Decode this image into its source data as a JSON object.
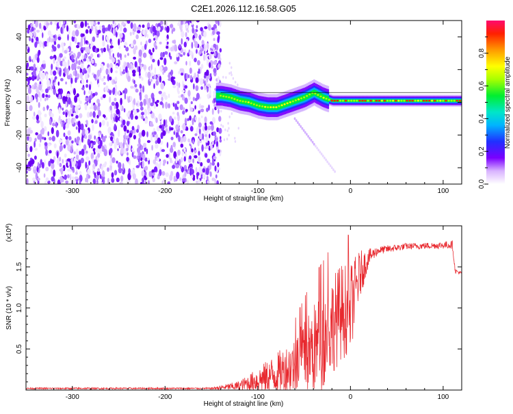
{
  "title": "C2E1.2026.112.16.58.G05",
  "chart_data": [
    {
      "type": "heatmap",
      "name": "spectrogram",
      "xlabel": "Height of straight line (km)",
      "ylabel": "Frequency (Hz)",
      "xlim": [
        -350,
        120
      ],
      "ylim": [
        -50,
        50
      ],
      "xticks": [
        -300,
        -200,
        -100,
        0,
        100
      ],
      "xtick_labels": [
        "-300",
        "-200",
        "-100",
        "0",
        "100"
      ],
      "yticks": [
        -40,
        -20,
        0,
        20,
        40
      ],
      "ytick_labels": [
        "-40",
        "-20",
        "0",
        "20",
        "40"
      ],
      "colorbar": {
        "label": "Normalized spectral amplitude",
        "range": [
          0,
          1
        ],
        "ticks": [
          0.0,
          0.2,
          0.4,
          0.6,
          0.8
        ],
        "tick_labels": [
          "0.0",
          "0.2",
          "0.4",
          "0.6",
          "0.8"
        ]
      },
      "noise_region_x": [
        -350,
        -140
      ],
      "ridge": [
        {
          "x": -140,
          "f": 4
        },
        {
          "x": -130,
          "f": 3
        },
        {
          "x": -120,
          "f": 1
        },
        {
          "x": -110,
          "f": 0
        },
        {
          "x": -100,
          "f": -2
        },
        {
          "x": -90,
          "f": -3
        },
        {
          "x": -80,
          "f": -3
        },
        {
          "x": -70,
          "f": -1
        },
        {
          "x": -60,
          "f": 1
        },
        {
          "x": -50,
          "f": 3
        },
        {
          "x": -40,
          "f": 6
        },
        {
          "x": -30,
          "f": 3
        },
        {
          "x": -20,
          "f": 1
        },
        {
          "x": 0,
          "f": 1
        },
        {
          "x": 50,
          "f": 1
        },
        {
          "x": 100,
          "f": 1
        },
        {
          "x": 120,
          "f": 1
        }
      ]
    },
    {
      "type": "line",
      "name": "snr",
      "xlabel": "Height of straight line (km)",
      "ylabel": "SNR (10 * v/v)",
      "scale_label": "(x10",
      "scale_exp": "4",
      "scale_close": ")",
      "color": "#e8282e",
      "xlim": [
        -350,
        120
      ],
      "ylim": [
        0,
        2.0
      ],
      "xticks": [
        -300,
        -200,
        -100,
        0,
        100
      ],
      "xtick_labels": [
        "-300",
        "-200",
        "-100",
        "0",
        "100"
      ],
      "yticks": [
        0.5,
        1.0,
        1.5
      ],
      "ytick_labels": [
        "0.5",
        "1.0",
        "1.5"
      ],
      "envelope": [
        {
          "x": -350,
          "base": 0.02,
          "amp": 0.01
        },
        {
          "x": -150,
          "base": 0.02,
          "amp": 0.01
        },
        {
          "x": -120,
          "base": 0.05,
          "amp": 0.06
        },
        {
          "x": -100,
          "base": 0.12,
          "amp": 0.15
        },
        {
          "x": -80,
          "base": 0.2,
          "amp": 0.25
        },
        {
          "x": -60,
          "base": 0.3,
          "amp": 0.35
        },
        {
          "x": -50,
          "base": 0.4,
          "amp": 0.45
        },
        {
          "x": -40,
          "base": 0.5,
          "amp": 0.55
        },
        {
          "x": -30,
          "base": 0.6,
          "amp": 0.6
        },
        {
          "x": -20,
          "base": 0.8,
          "amp": 0.6
        },
        {
          "x": -10,
          "base": 0.95,
          "amp": 0.6
        },
        {
          "x": 0,
          "base": 1.0,
          "amp": 0.55
        },
        {
          "x": 10,
          "base": 1.4,
          "amp": 0.3
        },
        {
          "x": 20,
          "base": 1.62,
          "amp": 0.1
        },
        {
          "x": 30,
          "base": 1.7,
          "amp": 0.05
        },
        {
          "x": 60,
          "base": 1.75,
          "amp": 0.04
        },
        {
          "x": 90,
          "base": 1.76,
          "amp": 0.04
        },
        {
          "x": 110,
          "base": 1.77,
          "amp": 0.05
        },
        {
          "x": 113,
          "base": 1.45,
          "amp": 0.03
        },
        {
          "x": 120,
          "base": 1.42,
          "amp": 0.02
        }
      ]
    }
  ]
}
